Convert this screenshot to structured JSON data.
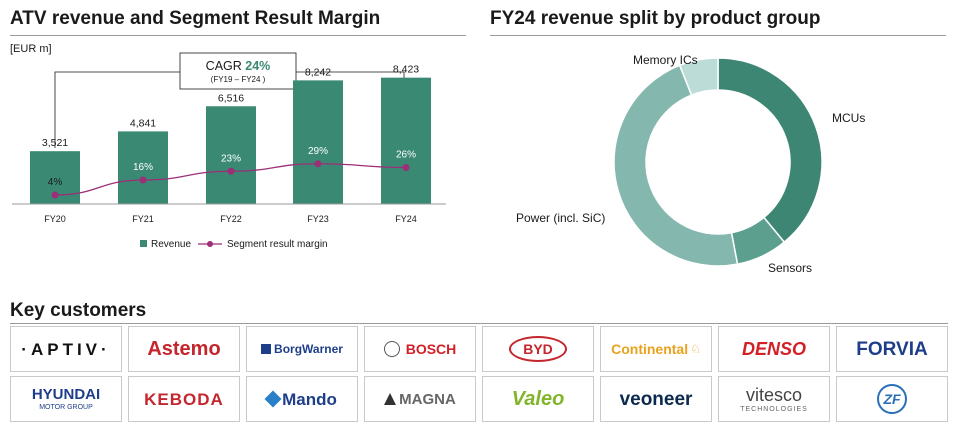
{
  "left_panel": {
    "title": "ATV revenue and Segment Result Margin",
    "unit": "[EUR m]",
    "cagr_label": "CAGR",
    "cagr_value": "24%",
    "cagr_period": "(FY19 – FY24 )"
  },
  "right_panel": {
    "title": "FY24 revenue split by product group"
  },
  "customers": {
    "title": "Key customers",
    "logos": [
      {
        "name": "APTIV",
        "text": "·APTIV·"
      },
      {
        "name": "Astemo",
        "text": "Astemo"
      },
      {
        "name": "BorgWarner",
        "text": "BorgWarner"
      },
      {
        "name": "BOSCH",
        "text": "BOSCH"
      },
      {
        "name": "BYD",
        "text": "BYD"
      },
      {
        "name": "Continental",
        "text": "Continental"
      },
      {
        "name": "DENSO",
        "text": "DENSO"
      },
      {
        "name": "FORVIA",
        "text": "FORVIA"
      },
      {
        "name": "HYUNDAI",
        "text": "HYUNDAI",
        "sub": "MOTOR GROUP"
      },
      {
        "name": "KEBODA",
        "text": "KEBODA"
      },
      {
        "name": "Mando",
        "text": "Mando"
      },
      {
        "name": "MAGNA",
        "text": "MAGNA"
      },
      {
        "name": "Valeo",
        "text": "Valeo"
      },
      {
        "name": "veoneer",
        "text": "veoneer"
      },
      {
        "name": "vitesco",
        "text": "vitesco",
        "sub": "TECHNOLOGIES"
      },
      {
        "name": "ZF",
        "text": "ZF"
      }
    ]
  },
  "colors": {
    "bar": "#3a8a73",
    "margin_line": "#9c2f78",
    "donut_mcu": "#3e8674",
    "donut_sensors": "#5c9f8f",
    "donut_power": "#84b7ad",
    "donut_memory": "#bcdcd7"
  },
  "chart_data": [
    {
      "type": "bar",
      "title": "ATV revenue and Segment Result Margin",
      "categories": [
        "FY20",
        "FY21",
        "FY22",
        "FY23",
        "FY24"
      ],
      "series": [
        {
          "name": "Revenue",
          "type": "bar",
          "values": [
            3521,
            4841,
            6516,
            8242,
            8423
          ],
          "labels": [
            "3,521",
            "4,841",
            "6,516",
            "8,242",
            "8,423"
          ]
        },
        {
          "name": "Segment result margin",
          "type": "line",
          "values": [
            4,
            16,
            23,
            29,
            26
          ],
          "labels": [
            "4%",
            "16%",
            "23%",
            "29%",
            "26%"
          ]
        }
      ],
      "legend": "bottom"
    },
    {
      "type": "pie",
      "title": "FY24 revenue split by product group",
      "categories": [
        "MCUs",
        "Sensors",
        "Power (incl. SiC)",
        "Memory ICs"
      ],
      "values": [
        39,
        8,
        47,
        6
      ]
    }
  ]
}
